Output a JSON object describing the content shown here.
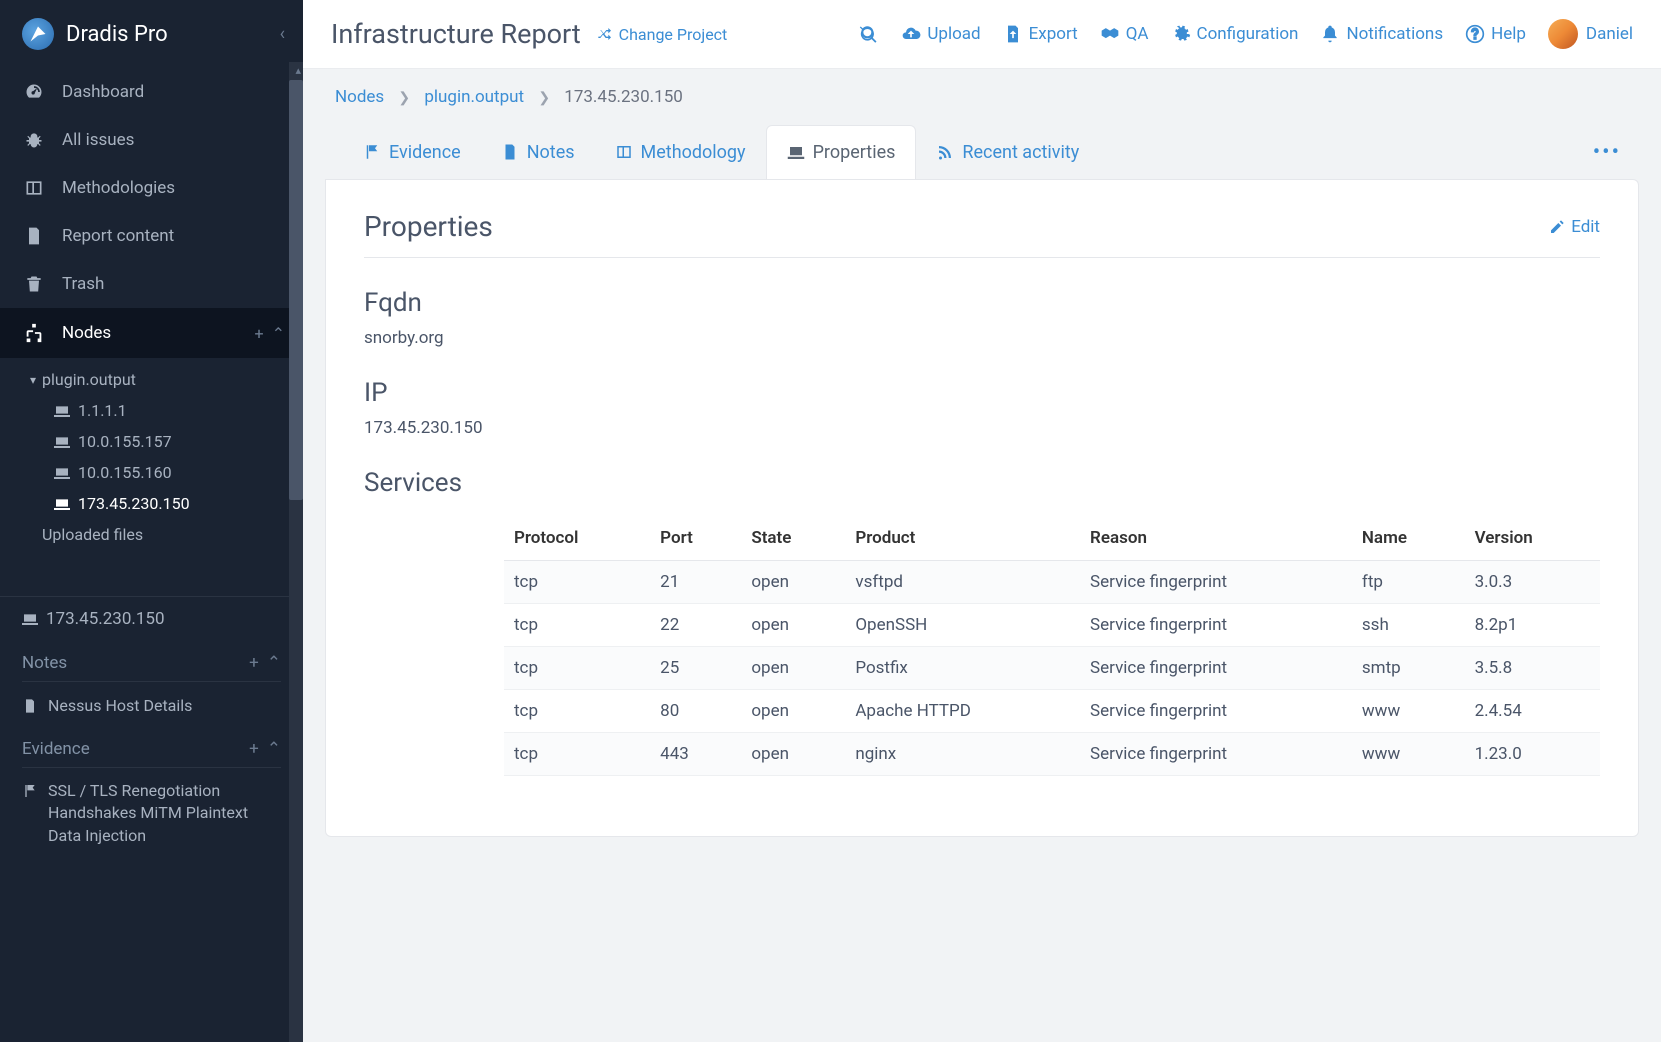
{
  "app": {
    "title": "Dradis Pro"
  },
  "sidebar": {
    "items": [
      {
        "label": "Dashboard"
      },
      {
        "label": "All issues"
      },
      {
        "label": "Methodologies"
      },
      {
        "label": "Report content"
      },
      {
        "label": "Trash"
      }
    ],
    "nodes_label": "Nodes",
    "tree": {
      "root": "plugin.output",
      "children": [
        {
          "label": "1.1.1.1",
          "active": false
        },
        {
          "label": "10.0.155.157",
          "active": false
        },
        {
          "label": "10.0.155.160",
          "active": false
        },
        {
          "label": "173.45.230.150",
          "active": true
        }
      ],
      "uploaded_label": "Uploaded files"
    },
    "context_node": "173.45.230.150",
    "notes_label": "Notes",
    "notes": [
      "Nessus Host Details"
    ],
    "evidence_label": "Evidence",
    "evidence": [
      "SSL / TLS Renegotiation Handshakes MiTM Plaintext Data Injection"
    ]
  },
  "topbar": {
    "page_title": "Infrastructure Report",
    "change_project": "Change Project",
    "actions": {
      "upload": "Upload",
      "export": "Export",
      "qa": "QA",
      "config": "Configuration",
      "notifications": "Notifications",
      "help": "Help"
    },
    "user": "Daniel"
  },
  "breadcrumbs": {
    "root": "Nodes",
    "parent": "plugin.output",
    "current": "173.45.230.150"
  },
  "tabs": {
    "evidence": "Evidence",
    "notes": "Notes",
    "methodology": "Methodology",
    "properties": "Properties",
    "recent": "Recent activity"
  },
  "panel": {
    "title": "Properties",
    "edit": "Edit",
    "fqdn_label": "Fqdn",
    "fqdn_value": "snorby.org",
    "ip_label": "IP",
    "ip_value": "173.45.230.150",
    "services_label": "Services",
    "table": {
      "columns": [
        "Protocol",
        "Port",
        "State",
        "Product",
        "Reason",
        "Name",
        "Version"
      ],
      "rows": [
        [
          "tcp",
          "21",
          "open",
          "vsftpd",
          "Service fingerprint",
          "ftp",
          "3.0.3"
        ],
        [
          "tcp",
          "22",
          "open",
          "OpenSSH",
          "Service fingerprint",
          "ssh",
          "8.2p1"
        ],
        [
          "tcp",
          "25",
          "open",
          "Postfix",
          "Service fingerprint",
          "smtp",
          "3.5.8"
        ],
        [
          "tcp",
          "80",
          "open",
          "Apache HTTPD",
          "Service fingerprint",
          "www",
          "2.4.54"
        ],
        [
          "tcp",
          "443",
          "open",
          "nginx",
          "Service fingerprint",
          "www",
          "1.23.0"
        ]
      ]
    }
  },
  "colors": {
    "link": "#3b8dd4",
    "sidebar_bg": "#1a2332",
    "sidebar_dark": "#0d1420",
    "text_muted": "#a8b2c0",
    "panel_border": "#e5e7eb",
    "body_bg": "#f1f3f5"
  }
}
